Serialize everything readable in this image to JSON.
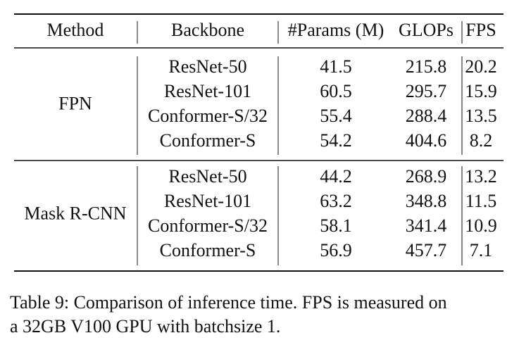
{
  "table": {
    "header": [
      "Method",
      "Backbone",
      "#Params (M)",
      "GLOPs",
      "FPS"
    ],
    "groups": [
      {
        "method": "FPN",
        "rows": [
          [
            "ResNet-50",
            41.5,
            215.8,
            20.2
          ],
          [
            "ResNet-101",
            60.5,
            295.7,
            15.9
          ],
          [
            "Conformer-S/32",
            55.4,
            288.4,
            13.5
          ],
          [
            "Conformer-S",
            54.2,
            404.6,
            8.2
          ]
        ]
      },
      {
        "method": "Mask R-CNN",
        "rows": [
          [
            "ResNet-50",
            44.2,
            268.9,
            13.2
          ],
          [
            "ResNet-101",
            63.2,
            348.8,
            11.5
          ],
          [
            "Conformer-S/32",
            58.1,
            341.4,
            10.9
          ],
          [
            "Conformer-S",
            56.9,
            457.7,
            7.1
          ]
        ]
      }
    ]
  },
  "caption": [
    "Table 9: Comparison of inference time. FPS is measured on",
    "a 32GB V100 GPU with batchsize 1."
  ]
}
